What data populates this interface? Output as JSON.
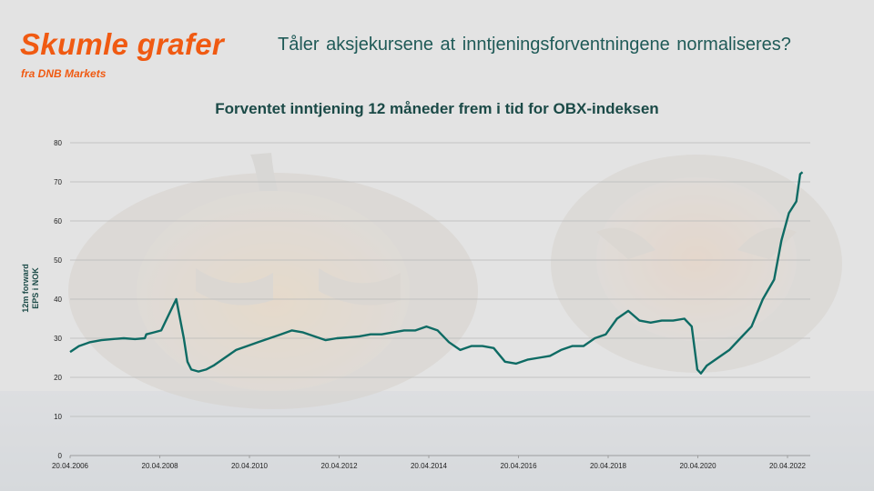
{
  "header": {
    "brand_title": "Skumle grafer",
    "brand_subtitle": "fra DNB Markets",
    "headline": "Tåler aksjekursene at inntjeningsforventningene normaliseres?"
  },
  "colors": {
    "brand": "#f05a12",
    "line": "#0e6b64",
    "grid": "#b8b8b8",
    "title": "#1b4a47"
  },
  "chart_data": {
    "type": "line",
    "title": "Forventet inntjening 12 måneder frem i tid for OBX-indeksen",
    "xlabel": "",
    "ylabel": [
      "12m forward",
      "EPS i NOK"
    ],
    "ylim": [
      0,
      80
    ],
    "yticks": [
      0,
      10,
      20,
      30,
      40,
      50,
      60,
      70,
      80
    ],
    "xlim": [
      "2006-04-20",
      "2022-08-20"
    ],
    "xticks": [
      "20.04.2006",
      "20.04.2008",
      "20.04.2010",
      "20.04.2012",
      "20.04.2014",
      "20.04.2016",
      "20.04.2018",
      "20.04.2020",
      "20.04.2022"
    ],
    "grid": true,
    "legend": "none",
    "series": [
      {
        "x": [
          "2006-04-20",
          "2006-07-01",
          "2006-10-01",
          "2007-01-01",
          "2007-04-01",
          "2007-07-01",
          "2007-10-01",
          "2007-12-20",
          "2008-01-01",
          "2008-03-01",
          "2008-05-01",
          "2008-07-01",
          "2008-09-01",
          "2008-11-01",
          "2008-12-01",
          "2009-01-01",
          "2009-03-01",
          "2009-05-01",
          "2009-07-01",
          "2009-10-01",
          "2010-01-01",
          "2010-04-01",
          "2010-07-01",
          "2010-10-01",
          "2011-01-01",
          "2011-04-01",
          "2011-07-01",
          "2011-10-01",
          "2012-01-01",
          "2012-04-01",
          "2012-07-01",
          "2012-10-01",
          "2013-01-01",
          "2013-04-01",
          "2013-07-01",
          "2013-10-01",
          "2014-01-01",
          "2014-04-01",
          "2014-07-01",
          "2014-10-01",
          "2015-01-01",
          "2015-04-01",
          "2015-07-01",
          "2015-10-01",
          "2016-01-01",
          "2016-04-01",
          "2016-07-01",
          "2016-10-01",
          "2017-01-01",
          "2017-04-01",
          "2017-07-01",
          "2017-10-01",
          "2018-01-01",
          "2018-04-01",
          "2018-07-01",
          "2018-10-01",
          "2019-01-01",
          "2019-04-01",
          "2019-07-01",
          "2019-10-01",
          "2020-01-01",
          "2020-03-01",
          "2020-04-15",
          "2020-05-15",
          "2020-07-01",
          "2020-10-01",
          "2021-01-01",
          "2021-04-01",
          "2021-07-01",
          "2021-10-01",
          "2022-01-01",
          "2022-03-01",
          "2022-05-01",
          "2022-07-01",
          "2022-08-01",
          "2022-08-20"
        ],
        "y": [
          26.5,
          28,
          29,
          29.5,
          29.8,
          30,
          29.8,
          30,
          31,
          31.5,
          32,
          36,
          40,
          30,
          24,
          22,
          21.5,
          22,
          23,
          25,
          27,
          28,
          29,
          30,
          31,
          32,
          31.5,
          30.5,
          29.5,
          30,
          30.2,
          30.5,
          31,
          31,
          31.5,
          32,
          32,
          33,
          32,
          29,
          27,
          28,
          28,
          27.5,
          24,
          23.5,
          24.5,
          25,
          25.5,
          27,
          28,
          28,
          30,
          31,
          35,
          37,
          34.5,
          34,
          34.5,
          34.5,
          35,
          33,
          22,
          21,
          23,
          25,
          27,
          30,
          33,
          40,
          45,
          55,
          62,
          65,
          72,
          72.5
        ]
      }
    ]
  }
}
